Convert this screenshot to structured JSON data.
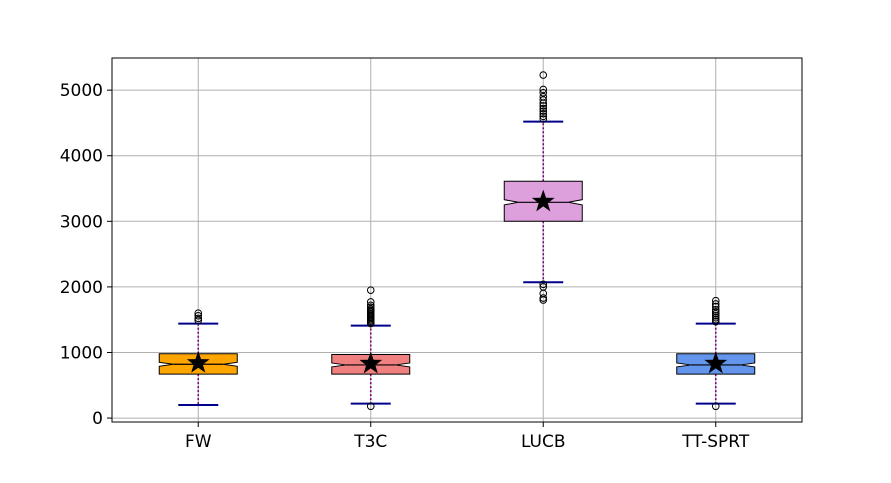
{
  "chart_data": {
    "type": "boxplot",
    "title": "",
    "xlabel": "",
    "ylabel": "",
    "ylim": [
      -60,
      5490
    ],
    "yticks": [
      0,
      1000,
      2000,
      3000,
      4000,
      5000
    ],
    "grid": true,
    "legend": "none",
    "categories": [
      "FW",
      "T3C",
      "LUCB",
      "TT-SPRT"
    ],
    "boxes": [
      {
        "name": "FW",
        "color": "#ffa500",
        "whisker_low": 200,
        "q1": 670,
        "median": 820,
        "q3": 980,
        "whisker_high": 1440,
        "mean": 840,
        "notch_low": 790,
        "notch_high": 850,
        "outliers": [
          1490,
          1520,
          1560,
          1600
        ]
      },
      {
        "name": "T3C",
        "color": "#f08080",
        "whisker_low": 220,
        "q1": 670,
        "median": 810,
        "q3": 970,
        "whisker_high": 1410,
        "mean": 830,
        "notch_low": 780,
        "notch_high": 840,
        "outliers": [
          180,
          1440,
          1460,
          1480,
          1500,
          1520,
          1540,
          1560,
          1580,
          1600,
          1620,
          1640,
          1660,
          1690,
          1720,
          1770,
          1950
        ]
      },
      {
        "name": "LUCB",
        "color": "#dda0dd",
        "whisker_low": 2070,
        "q1": 3000,
        "median": 3290,
        "q3": 3610,
        "whisker_high": 4520,
        "mean": 3300,
        "notch_low": 3250,
        "notch_high": 3330,
        "outliers": [
          1800,
          1830,
          1900,
          2000,
          2040,
          4560,
          4600,
          4640,
          4680,
          4720,
          4760,
          4800,
          4850,
          4900,
          4960,
          5010,
          5230
        ]
      },
      {
        "name": "TT-SPRT",
        "color": "#6495ed",
        "whisker_low": 220,
        "q1": 670,
        "median": 810,
        "q3": 980,
        "whisker_high": 1440,
        "mean": 830,
        "notch_low": 780,
        "notch_high": 840,
        "outliers": [
          180,
          1470,
          1500,
          1530,
          1560,
          1590,
          1620,
          1650,
          1700,
          1740,
          1790
        ]
      }
    ],
    "style": {
      "whisker_cap_color": "#00008b",
      "whisker_line_color": "#800080",
      "median_color": "#000000",
      "mean_marker": "star",
      "grid_color": "#b0b0b0"
    }
  }
}
